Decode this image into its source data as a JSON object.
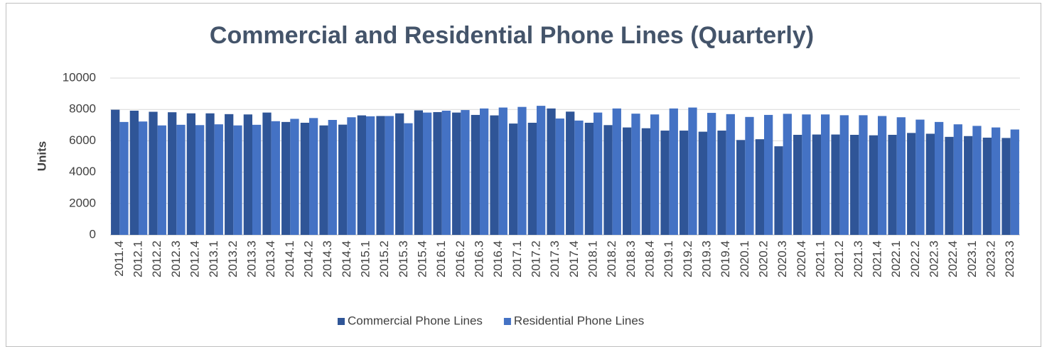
{
  "chart_data": {
    "type": "bar",
    "title": "Commercial and Residential Phone Lines (Quarterly)",
    "y_label": "Units",
    "categories": [
      "2011.4",
      "2012.1",
      "2012.2",
      "2012.3",
      "2012.4",
      "2013.1",
      "2013.2",
      "2013.3",
      "2013.4",
      "2014.1",
      "2014.2",
      "2014.3",
      "2014.4",
      "2015.1",
      "2015.2",
      "2015.3",
      "2015.4",
      "2016.1",
      "2016.2",
      "2016.3",
      "2016.4",
      "2017.1",
      "2017.2",
      "2017.3",
      "2017.4",
      "2018.1",
      "2018.2",
      "2018.3",
      "2018.4",
      "2019.1",
      "2019.2",
      "2019.3",
      "2019.4",
      "2020.1",
      "2020.2",
      "2020.3",
      "2020.4",
      "2021.1",
      "2021.2",
      "2021.3",
      "2021.4",
      "2022.1",
      "2022.2",
      "2022.3",
      "2022.4",
      "2023.1",
      "2023.2",
      "2023.3"
    ],
    "series": [
      {
        "name": "Commercial Phone Lines",
        "color": "#2f5597",
        "values": [
          7980,
          7920,
          7850,
          7820,
          7750,
          7750,
          7700,
          7680,
          7800,
          7200,
          7150,
          6980,
          7030,
          7620,
          7580,
          7750,
          7940,
          7830,
          7800,
          7650,
          7620,
          7100,
          7150,
          8060,
          7860,
          7150,
          7000,
          6850,
          6800,
          6650,
          6650,
          6580,
          6650,
          6050,
          6100,
          5650,
          6380,
          6400,
          6400,
          6380,
          6350,
          6380,
          6500,
          6450,
          6250,
          6300,
          6200,
          6180
        ]
      },
      {
        "name": "Residential Phone Lines",
        "color": "#4472c4",
        "values": [
          7200,
          7230,
          6980,
          7020,
          7000,
          7050,
          6980,
          7020,
          7250,
          7400,
          7450,
          7330,
          7500,
          7560,
          7580,
          7120,
          7800,
          7920,
          7960,
          8060,
          8120,
          8160,
          8230,
          7420,
          7290,
          7800,
          8060,
          7730,
          7680,
          8060,
          8120,
          7780,
          7700,
          7520,
          7650,
          7720,
          7680,
          7680,
          7630,
          7630,
          7580,
          7500,
          7350,
          7200,
          7050,
          6950,
          6850,
          6720
        ]
      }
    ],
    "ylim": [
      0,
      10000
    ],
    "yticks": [
      0,
      2000,
      4000,
      6000,
      8000,
      10000
    ],
    "grid": true,
    "legend": "bottom"
  }
}
